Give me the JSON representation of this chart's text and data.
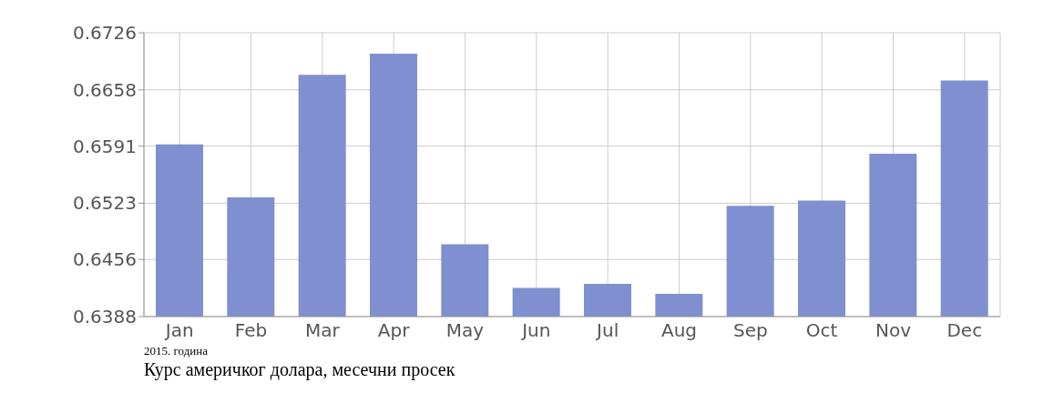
{
  "chart_data": {
    "type": "bar",
    "categories": [
      "Jan",
      "Feb",
      "Mar",
      "Apr",
      "May",
      "Jun",
      "Jul",
      "Aug",
      "Sep",
      "Oct",
      "Nov",
      "Dec"
    ],
    "values": [
      0.6593,
      0.653,
      0.6676,
      0.6701,
      0.6474,
      0.6422,
      0.6427,
      0.6415,
      0.652,
      0.6526,
      0.6582,
      0.6669
    ],
    "color": "#7f8fcf",
    "ylim": [
      0.6388,
      0.6726
    ],
    "yticks": [
      0.6388,
      0.6456,
      0.6523,
      0.6591,
      0.6658,
      0.6726
    ],
    "grid": true,
    "annotations": [
      "2015. година",
      "Курс америчког долара, месечни просек"
    ]
  }
}
